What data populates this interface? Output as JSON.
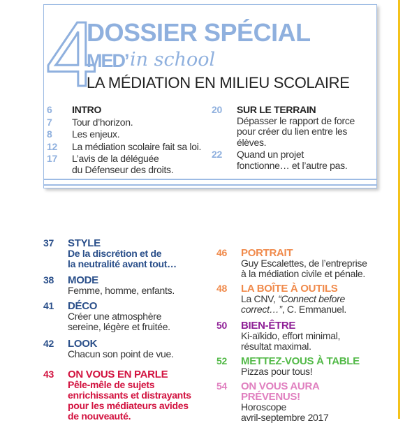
{
  "dossier": {
    "big_number": "4",
    "title": "DOSSIER SPÉCIAL",
    "med": "MED’",
    "school": "in school",
    "subtitle": "LA MÉDIATION EN MILIEU SCOLAIRE",
    "left": [
      {
        "page": "6",
        "heading": "INTRO"
      },
      {
        "page": "7",
        "text": "Tour d’horizon."
      },
      {
        "page": "8",
        "text": "Les enjeux."
      },
      {
        "page": "12",
        "text": "La médiation scolaire fait sa loi."
      },
      {
        "page": "17",
        "text": "L’avis de la déléguée",
        "text2": "du Défenseur des droits."
      }
    ],
    "right": [
      {
        "page": "20",
        "heading": "SUR LE TERRAIN",
        "lines": [
          "Dépasser le rapport de force",
          "pour créer du lien entre les",
          "élèves."
        ]
      },
      {
        "page": "22",
        "lines": [
          "Quand un projet",
          "fonctionne… et l’autre pas."
        ]
      }
    ]
  },
  "colors": {
    "dossier": "#8fb0de",
    "navy": "#2a4f8a",
    "red": "#d2123f",
    "orange": "#f08a4b",
    "purple": "#8e1f96",
    "green": "#52b947",
    "pink": "#e07fbf",
    "yellow": "#f4c21b"
  },
  "entries": [
    {
      "page": "37",
      "heading": "STYLE",
      "lines": [
        "De la discrétion et de",
        "la neutralité avant tout…"
      ]
    },
    {
      "page": "38",
      "heading": "MODE",
      "lines": [
        "Femme, homme, enfants."
      ]
    },
    {
      "page": "41",
      "heading": "DÉCO",
      "lines": [
        "Créer une atmosphère",
        "sereine, légère et fruitée."
      ]
    },
    {
      "page": "42",
      "heading": "LOOK",
      "lines": [
        "Chacun son point de vue."
      ]
    },
    {
      "page": "43",
      "heading": "ON VOUS EN PARLE",
      "lines": [
        "Pêle-mêle de sujets",
        "enrichissants et distrayants",
        "pour les médiateurs avides",
        "de nouveauté."
      ]
    },
    {
      "page": "46",
      "heading": "PORTRAIT",
      "lines": [
        "Guy Escalettes, de l’entreprise",
        "à la médiation civile et pénale."
      ]
    },
    {
      "page": "48",
      "heading": "LA BOÎTE À OUTILS",
      "line1a": "La CNV, ",
      "line1b": "“Connect before",
      "line2a": "correct…”",
      "line2b": ", C. Emmanuel."
    },
    {
      "page": "50",
      "heading": "BIEN-ÊTRE",
      "lines": [
        "Ki-aïkido, effort minimal,",
        "résultat maximal."
      ]
    },
    {
      "page": "52",
      "heading": "METTEZ-VOUS À TABLE",
      "lines": [
        "Pizzas pour tous!"
      ]
    },
    {
      "page": "54",
      "heading": "ON VOUS AURA",
      "heading2": "PRÉVENUS!",
      "lines": [
        "Horoscope",
        "avril-septembre 2017"
      ]
    }
  ]
}
